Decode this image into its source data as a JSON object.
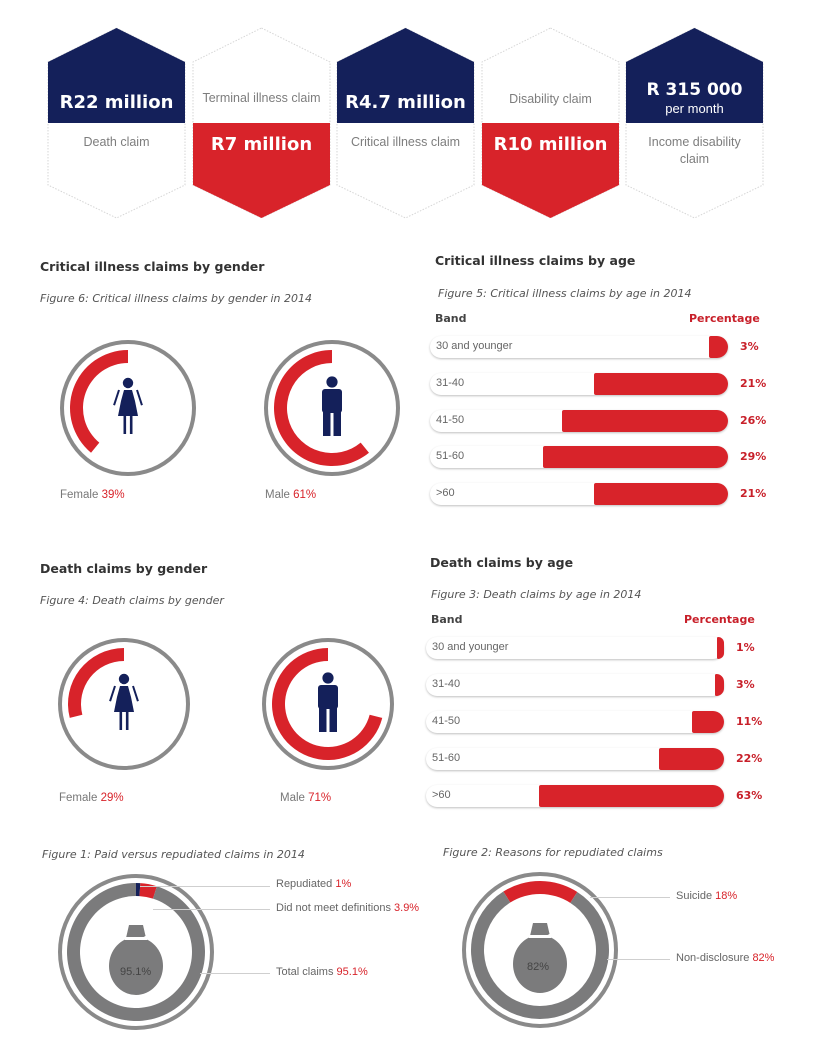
{
  "hexagons": [
    {
      "value": "R22 million",
      "label": "Death claim",
      "style": "navy-top"
    },
    {
      "value": "R7 million",
      "label": "Terminal illness claim",
      "style": "red-bottom"
    },
    {
      "value": "R4.7 million",
      "label": "Critical illness claim",
      "style": "navy-top"
    },
    {
      "value": "R10 million",
      "label": "Disability claim",
      "style": "red-bottom"
    },
    {
      "value": "R 315 000",
      "sub": "per month",
      "label": "Income disability claim",
      "style": "navy-top"
    }
  ],
  "colors": {
    "navy": "#14205a",
    "red": "#d8232a",
    "grey": "#7b7b7c",
    "ring": "#8a8a8a"
  },
  "ci_gender": {
    "title": "Critical illness claims by gender",
    "figure": "Figure 6: Critical illness claims by gender in 2014",
    "female": {
      "label": "Female",
      "value": 39,
      "pct": "39%"
    },
    "male": {
      "label": "Male",
      "value": 61,
      "pct": "61%"
    }
  },
  "ci_age": {
    "title": "Critical illness claims by age",
    "figure": "Figure 5: Critical illness claims by age in 2014",
    "band_header": "Band",
    "pct_header": "Percentage",
    "rows": [
      {
        "band": "30 and younger",
        "value": 3,
        "pct": "3%"
      },
      {
        "band": "31-40",
        "value": 21,
        "pct": "21%"
      },
      {
        "band": "41-50",
        "value": 26,
        "pct": "26%"
      },
      {
        "band": "51-60",
        "value": 29,
        "pct": "29%"
      },
      {
        "band": ">60",
        "value": 21,
        "pct": "21%"
      }
    ]
  },
  "death_gender": {
    "title": "Death claims by gender",
    "figure": "Figure 4: Death claims by gender",
    "female": {
      "label": "Female",
      "value": 29,
      "pct": "29%"
    },
    "male": {
      "label": "Male",
      "value": 71,
      "pct": "71%"
    }
  },
  "death_age": {
    "title": "Death claims by age",
    "figure": "Figure 3: Death claims by age in 2014",
    "band_header": "Band",
    "pct_header": "Percentage",
    "rows": [
      {
        "band": "30 and younger",
        "value": 1,
        "pct": "1%"
      },
      {
        "band": "31-40",
        "value": 3,
        "pct": "3%"
      },
      {
        "band": "41-50",
        "value": 11,
        "pct": "11%"
      },
      {
        "band": "51-60",
        "value": 22,
        "pct": "22%"
      },
      {
        "band": ">60",
        "value": 63,
        "pct": "63%"
      }
    ]
  },
  "paid_repudiated": {
    "figure": "Figure 1: Paid versus repudiated claims in 2014",
    "center": "95.1%",
    "segments": [
      {
        "label": "Repudiated",
        "value": 1,
        "pct": "1%",
        "color": "#14205a"
      },
      {
        "label": "Did not meet definitions",
        "value": 3.9,
        "pct": "3.9%",
        "color": "#d8232a"
      },
      {
        "label": "Total claims",
        "value": 95.1,
        "pct": "95.1%",
        "color": "#7b7b7c"
      }
    ]
  },
  "repudiation_reasons": {
    "figure": "Figure 2: Reasons for repudiated claims",
    "center": "82%",
    "segments": [
      {
        "label": "Suicide",
        "value": 18,
        "pct": "18%",
        "color": "#d8232a"
      },
      {
        "label": "Non-disclosure",
        "value": 82,
        "pct": "82%",
        "color": "#7b7b7c"
      }
    ]
  },
  "chart_data": [
    {
      "type": "pie",
      "title": "Figure 6: Critical illness claims by gender in 2014",
      "categories": [
        "Female",
        "Male"
      ],
      "values": [
        39,
        61
      ]
    },
    {
      "type": "bar",
      "title": "Figure 5: Critical illness claims by age in 2014",
      "categories": [
        "30 and younger",
        "31-40",
        "41-50",
        "51-60",
        ">60"
      ],
      "values": [
        3,
        21,
        26,
        29,
        21
      ]
    },
    {
      "type": "pie",
      "title": "Figure 4: Death claims by gender",
      "categories": [
        "Female",
        "Male"
      ],
      "values": [
        29,
        71
      ]
    },
    {
      "type": "bar",
      "title": "Figure 3: Death claims by age in 2014",
      "categories": [
        "30 and younger",
        "31-40",
        "41-50",
        "51-60",
        ">60"
      ],
      "values": [
        1,
        3,
        11,
        22,
        63
      ]
    },
    {
      "type": "pie",
      "title": "Figure 1: Paid versus repudiated claims in 2014",
      "categories": [
        "Repudiated",
        "Did not meet definitions",
        "Total claims"
      ],
      "values": [
        1,
        3.9,
        95.1
      ]
    },
    {
      "type": "pie",
      "title": "Figure 2: Reasons for repudiated claims",
      "categories": [
        "Suicide",
        "Non-disclosure"
      ],
      "values": [
        18,
        82
      ]
    }
  ]
}
